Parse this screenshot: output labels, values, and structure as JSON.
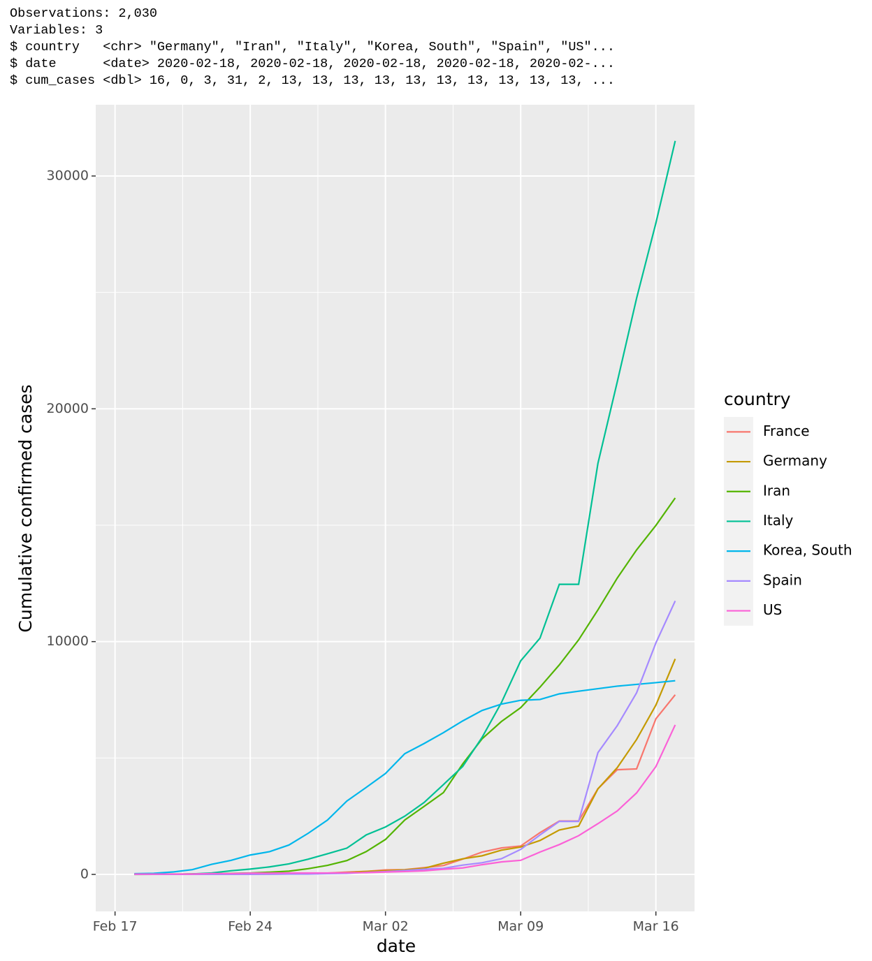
{
  "console": {
    "lines": [
      "Observations: 2,030",
      "Variables: 3",
      "$ country   <chr> \"Germany\", \"Iran\", \"Italy\", \"Korea, South\", \"Spain\", \"US\"...",
      "$ date      <date> 2020-02-18, 2020-02-18, 2020-02-18, 2020-02-18, 2020-02-...",
      "$ cum_cases <dbl> 16, 0, 3, 31, 2, 13, 13, 13, 13, 13, 13, 13, 13, 13, 13, ..."
    ]
  },
  "chart_data": {
    "type": "line",
    "x_label": "date",
    "y_label": "Cumulative confirmed cases",
    "legend_title": "country",
    "legend_position": "right",
    "grid": true,
    "x": [
      "Feb 18",
      "Feb 19",
      "Feb 20",
      "Feb 21",
      "Feb 22",
      "Feb 23",
      "Feb 24",
      "Feb 25",
      "Feb 26",
      "Feb 27",
      "Feb 28",
      "Feb 29",
      "Mar 01",
      "Mar 02",
      "Mar 03",
      "Mar 04",
      "Mar 05",
      "Mar 06",
      "Mar 07",
      "Mar 08",
      "Mar 09",
      "Mar 10",
      "Mar 11",
      "Mar 12",
      "Mar 13",
      "Mar 14",
      "Mar 15",
      "Mar 16",
      "Mar 17"
    ],
    "xlim": [
      "Feb 16",
      "Mar 18"
    ],
    "xticks": [
      "Feb 17",
      "Feb 24",
      "Mar 02",
      "Mar 09",
      "Mar 16"
    ],
    "ylim": [
      -1590,
      33060
    ],
    "yticks": [
      0,
      10000,
      20000,
      30000
    ],
    "series": [
      {
        "name": "France",
        "color": "#F8766D",
        "values": [
          12,
          12,
          12,
          12,
          12,
          12,
          12,
          14,
          18,
          38,
          57,
          100,
          130,
          191,
          204,
          288,
          380,
          656,
          959,
          1136,
          1219,
          1794,
          2293,
          2293,
          3681,
          4496,
          4532,
          6683,
          7715
        ]
      },
      {
        "name": "Germany",
        "color": "#C49A00",
        "values": [
          16,
          16,
          16,
          16,
          16,
          16,
          16,
          17,
          27,
          46,
          48,
          79,
          130,
          159,
          196,
          262,
          482,
          670,
          799,
          1040,
          1176,
          1457,
          1908,
          2078,
          3675,
          4585,
          5795,
          7272,
          9257
        ]
      },
      {
        "name": "Iran",
        "color": "#53B400",
        "values": [
          0,
          2,
          5,
          18,
          28,
          43,
          61,
          95,
          139,
          245,
          388,
          593,
          978,
          1501,
          2336,
          2922,
          3513,
          4747,
          5823,
          6566,
          7161,
          8042,
          9000,
          10075,
          11364,
          12729,
          13938,
          14991,
          16169
        ]
      },
      {
        "name": "Italy",
        "color": "#00C094",
        "values": [
          3,
          3,
          3,
          20,
          62,
          155,
          229,
          322,
          453,
          655,
          888,
          1128,
          1694,
          2036,
          2502,
          3089,
          3858,
          4636,
          5883,
          7375,
          9172,
          10149,
          12462,
          12462,
          17660,
          21157,
          24747,
          27980,
          31506
        ]
      },
      {
        "name": "Korea, South",
        "color": "#00B6EB",
        "values": [
          31,
          46,
          104,
          204,
          433,
          602,
          833,
          977,
          1261,
          1766,
          2337,
          3150,
          3736,
          4335,
          5186,
          5621,
          6088,
          6593,
          7041,
          7314,
          7478,
          7513,
          7755,
          7869,
          7979,
          8086,
          8162,
          8236,
          8320
        ]
      },
      {
        "name": "Spain",
        "color": "#A58AFF",
        "values": [
          2,
          2,
          2,
          2,
          2,
          2,
          2,
          6,
          13,
          15,
          32,
          45,
          84,
          120,
          165,
          222,
          259,
          400,
          500,
          673,
          1073,
          1695,
          2277,
          2277,
          5232,
          6391,
          7798,
          9942,
          11748
        ]
      },
      {
        "name": "US",
        "color": "#FB61D7",
        "values": [
          13,
          13,
          13,
          15,
          35,
          35,
          53,
          53,
          59,
          60,
          62,
          70,
          76,
          101,
          122,
          153,
          221,
          278,
          417,
          537,
          605,
          959,
          1281,
          1663,
          2179,
          2726,
          3499,
          4632,
          6421
        ]
      }
    ]
  }
}
